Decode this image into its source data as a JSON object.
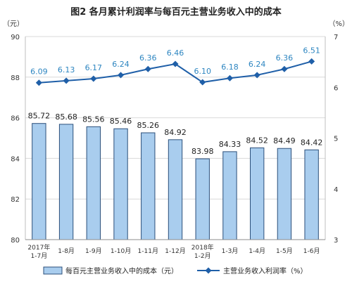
{
  "chart_data": {
    "type": "bar+line",
    "title": "图2  各月累计利润率与每百元主营业务收入中的成本",
    "left_axis_unit": "（元）",
    "right_axis_unit": "（%）",
    "categories": [
      [
        "2017年",
        "1-7月"
      ],
      [
        "1-8月"
      ],
      [
        "1-9月"
      ],
      [
        "1-10月"
      ],
      [
        "1-11月"
      ],
      [
        "1-12月"
      ],
      [
        "2018年",
        "1-2月"
      ],
      [
        "1-3月"
      ],
      [
        "1-4月"
      ],
      [
        "1-5月"
      ],
      [
        "1-6月"
      ]
    ],
    "left_axis": {
      "min": 80,
      "max": 90,
      "ticks": [
        "80",
        "82",
        "84",
        "86",
        "88",
        "90"
      ]
    },
    "right_axis": {
      "min": 3,
      "max": 7,
      "ticks": [
        "3",
        "4",
        "5",
        "6",
        "7"
      ]
    },
    "series": [
      {
        "name": "每百元主营业务收入中的成本（元）",
        "type": "bar",
        "axis": "left",
        "color": "#a9cdee",
        "values": [
          85.72,
          85.68,
          85.56,
          85.46,
          85.26,
          84.92,
          83.98,
          84.33,
          84.52,
          84.49,
          84.42
        ],
        "labels": [
          "85.72",
          "85.68",
          "85.56",
          "85.46",
          "85.26",
          "84.92",
          "83.98",
          "84.33",
          "84.52",
          "84.49",
          "84.42"
        ]
      },
      {
        "name": "主营业务收入利润率（%）",
        "type": "line",
        "axis": "right",
        "color": "#1f5fa8",
        "values": [
          6.09,
          6.13,
          6.17,
          6.24,
          6.36,
          6.46,
          6.1,
          6.18,
          6.24,
          6.36,
          6.51
        ],
        "labels": [
          "6.09",
          "6.13",
          "6.17",
          "6.24",
          "6.36",
          "6.46",
          "6.10",
          "6.18",
          "6.24",
          "6.36",
          "6.51"
        ]
      }
    ],
    "label_color": "#2e86c1",
    "grid": "horizontal",
    "legend": "bottom"
  }
}
